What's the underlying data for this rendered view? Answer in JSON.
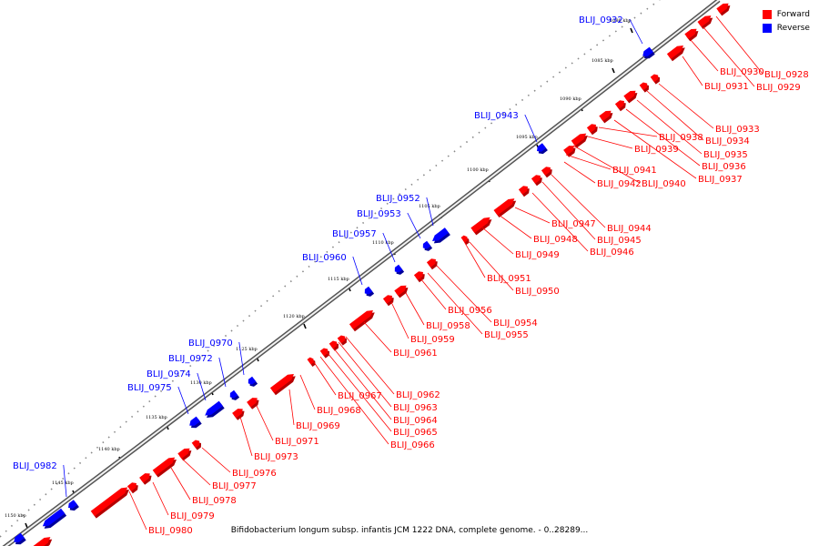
{
  "legend": [
    {
      "label": "Forward",
      "color": "#ff0000"
    },
    {
      "label": "Reverse",
      "color": "#0000ff"
    }
  ],
  "caption": "Bifidobacterium longum subsp. infantis JCM 1222 DNA, complete genome. - 0..28289...",
  "ticks": [
    "1080 kbp",
    "1085 kbp",
    "1090 kbp",
    "1095 kbp",
    "1100 kbp",
    "1105 kbp",
    "1110 kbp",
    "1115 kbp",
    "1120 kbp",
    "1125 kbp",
    "1130 kbp",
    "1135 kbp",
    "1140 kbp",
    "1145 kbp",
    "1150 kbp"
  ],
  "reverse_genes": [
    "BLIJ_0932",
    "BLIJ_0943",
    "BLIJ_0952",
    "BLIJ_0953",
    "BLIJ_0957",
    "BLIJ_0960",
    "BLIJ_0970",
    "BLIJ_0972",
    "BLIJ_0974",
    "BLIJ_0975",
    "BLIJ_0982"
  ],
  "forward_genes": [
    "BLIJ_0928",
    "BLIJ_0929",
    "BLIJ_0930",
    "BLIJ_0931",
    "BLIJ_0933",
    "BLIJ_0934",
    "BLIJ_0935",
    "BLIJ_0936",
    "BLIJ_0937",
    "BLIJ_0938",
    "BLIJ_0939",
    "BLIJ_0940",
    "BLIJ_0941",
    "BLIJ_0942",
    "BLIJ_0944",
    "BLIJ_0945",
    "BLIJ_0946",
    "BLIJ_0947",
    "BLIJ_0948",
    "BLIJ_0949",
    "BLIJ_0950",
    "BLIJ_0951",
    "BLIJ_0954",
    "BLIJ_0955",
    "BLIJ_0956",
    "BLIJ_0958",
    "BLIJ_0959",
    "BLIJ_0961",
    "BLIJ_0962",
    "BLIJ_0963",
    "BLIJ_0964",
    "BLIJ_0965",
    "BLIJ_0966",
    "BLIJ_0967",
    "BLIJ_0968",
    "BLIJ_0969",
    "BLIJ_0971",
    "BLIJ_0973",
    "BLIJ_0976",
    "BLIJ_0977",
    "BLIJ_0978",
    "BLIJ_0979",
    "BLIJ_0980"
  ]
}
